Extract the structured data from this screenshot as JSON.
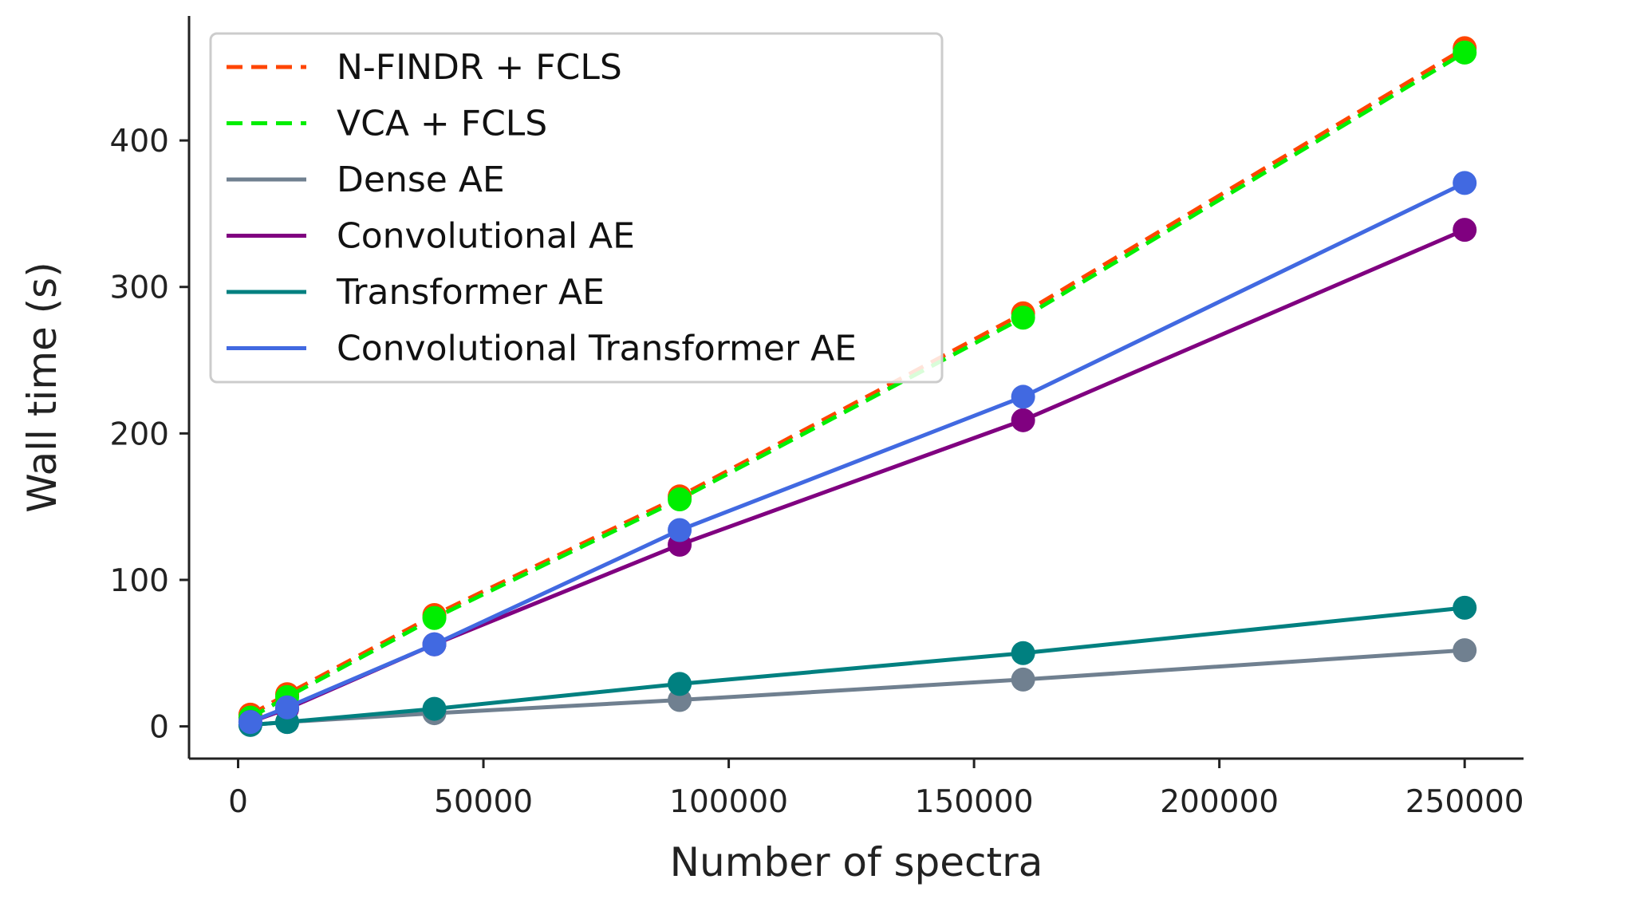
{
  "chart_data": {
    "type": "line",
    "xlabel": "Number of spectra",
    "ylabel": "Wall time (s)",
    "xlim": [
      -10000,
      262000
    ],
    "ylim": [
      -22,
      485
    ],
    "xticks": [
      0,
      50000,
      100000,
      150000,
      200000,
      250000
    ],
    "yticks": [
      0,
      100,
      200,
      300,
      400
    ],
    "grid": false,
    "legend_position": "top-left",
    "x": [
      2500,
      10000,
      40000,
      90000,
      160000,
      250000
    ],
    "series": [
      {
        "name": "N-FINDR + FCLS",
        "color": "#ff4500",
        "style": "dashed",
        "values": [
          8,
          22,
          76,
          157,
          282,
          463
        ]
      },
      {
        "name": "VCA + FCLS",
        "color": "#00ee00",
        "style": "dashed",
        "values": [
          6,
          20,
          74,
          155,
          279,
          460
        ]
      },
      {
        "name": "Dense AE",
        "color": "#708090",
        "style": "solid",
        "values": [
          1,
          3,
          9,
          18,
          32,
          52
        ]
      },
      {
        "name": "Convolutional AE",
        "color": "#800080",
        "style": "solid",
        "values": [
          3,
          12,
          56,
          124,
          209,
          339
        ]
      },
      {
        "name": "Transformer AE",
        "color": "#008080",
        "style": "solid",
        "values": [
          1,
          3,
          12,
          29,
          50,
          81
        ]
      },
      {
        "name": "Convolutional Transformer AE",
        "color": "#4169e1",
        "style": "solid",
        "values": [
          3,
          13,
          56,
          134,
          225,
          371
        ]
      }
    ]
  }
}
